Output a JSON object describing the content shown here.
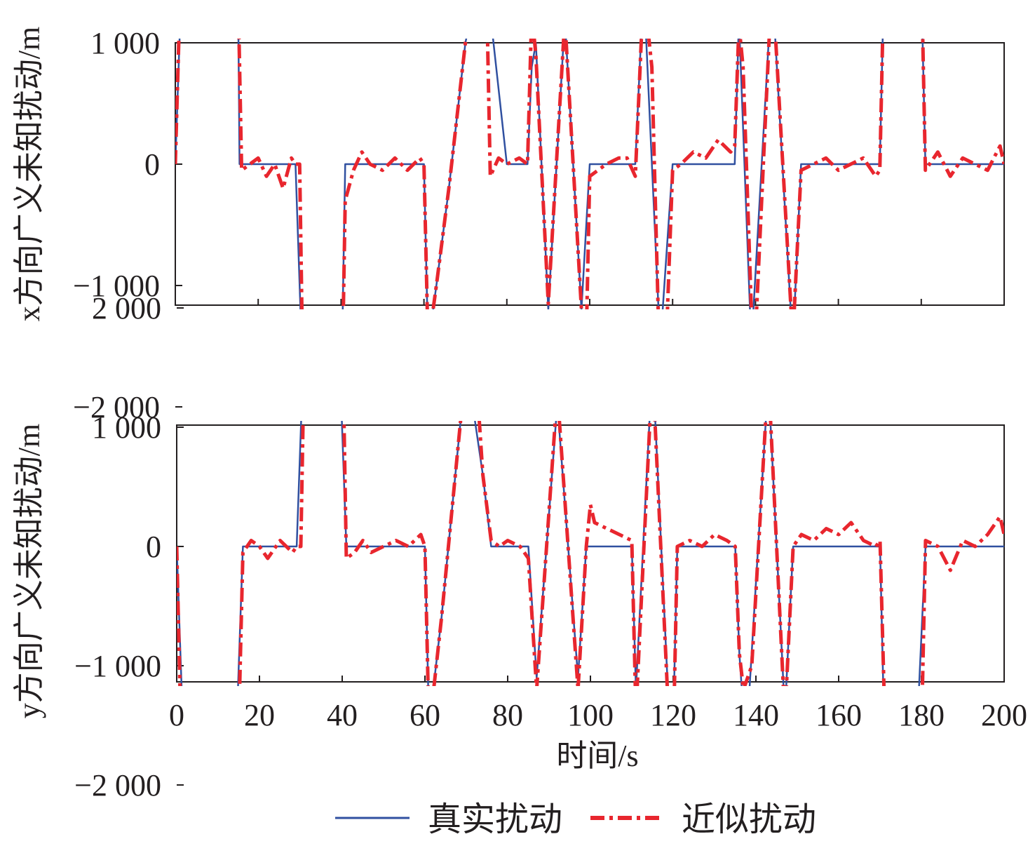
{
  "chart_data": [
    {
      "type": "line",
      "ylabel": "x方向广义未知扰动/m",
      "xlim": [
        0,
        200
      ],
      "ylim": [
        -2300,
        2000
      ],
      "yticks": [
        2000,
        1000,
        0,
        -1000,
        -2000
      ],
      "ytick_labels": [
        "2 000",
        "1 000",
        "0",
        "−1 000",
        "−2 000"
      ],
      "grid": false,
      "series": [
        {
          "name": "真实扰动",
          "color": "#3050a0",
          "style": "solid",
          "x": [
            0,
            2,
            15,
            15.5,
            29,
            31,
            40,
            41,
            60,
            61,
            63,
            66,
            70,
            73,
            75,
            80,
            85,
            86,
            87,
            90,
            94,
            98,
            100,
            104,
            109,
            111,
            113,
            117,
            120,
            123,
            135,
            136,
            139,
            144,
            149,
            151,
            170,
            171,
            180,
            181,
            200
          ],
          "y": [
            0,
            2000,
            2000,
            0,
            0,
            -2000,
            -2000,
            0,
            0,
            -1500,
            -1000,
            -200,
            1000,
            1500,
            1550,
            0,
            0,
            800,
            1000,
            -1200,
            1200,
            -1200,
            0,
            0,
            0,
            0,
            1500,
            -1500,
            0,
            0,
            0,
            1200,
            -1500,
            1500,
            -1500,
            0,
            0,
            1500,
            1500,
            0,
            0
          ]
        },
        {
          "name": "近似扰动",
          "color": "#e8262e",
          "style": "dash-dot",
          "x": [
            0,
            1,
            2,
            4,
            6,
            8,
            10,
            12,
            14,
            15,
            16,
            18,
            20,
            22,
            24,
            26,
            28,
            29,
            30,
            31,
            33,
            35,
            37,
            39,
            40,
            41,
            43,
            45,
            47,
            50,
            53,
            56,
            59,
            60,
            61,
            63,
            66,
            70,
            73,
            74,
            75,
            76,
            78,
            80,
            83,
            85,
            86,
            87,
            90,
            94,
            98,
            99,
            100,
            102,
            104,
            107,
            109,
            111,
            113,
            115,
            117,
            118,
            120,
            122,
            125,
            128,
            131,
            134,
            135,
            136,
            137,
            139,
            140,
            144,
            149,
            151,
            154,
            157,
            160,
            163,
            166,
            169,
            170,
            171,
            173,
            175,
            177,
            179,
            180,
            181,
            184,
            187,
            190,
            193,
            196,
            199,
            200
          ],
          "y": [
            0,
            1200,
            1900,
            1850,
            1800,
            1750,
            1700,
            1650,
            1700,
            1700,
            -50,
            0,
            50,
            -100,
            0,
            -200,
            50,
            0,
            0,
            -2200,
            -2100,
            -2050,
            -2200,
            -2100,
            -2300,
            -300,
            -50,
            100,
            0,
            -50,
            50,
            -50,
            50,
            0,
            -1500,
            -1000,
            -200,
            1000,
            1600,
            1650,
            1600,
            -100,
            50,
            0,
            50,
            0,
            1250,
            900,
            -1150,
            1200,
            -1200,
            -1700,
            -100,
            -50,
            0,
            50,
            50,
            -100,
            1450,
            800,
            -1850,
            -1900,
            -50,
            0,
            100,
            50,
            200,
            100,
            150,
            1150,
            800,
            -1200,
            -1400,
            1550,
            -1450,
            -50,
            0,
            50,
            -50,
            0,
            50,
            -100,
            -50,
            1550,
            1500,
            1550,
            1500,
            1550,
            1650,
            -50,
            100,
            -100,
            50,
            0,
            -50,
            150,
            0
          ]
        }
      ]
    },
    {
      "type": "line",
      "ylabel": "y方向广义未知扰动/m",
      "xlabel": "时间/s",
      "xlim": [
        0,
        200
      ],
      "ylim": [
        -2300,
        2000
      ],
      "xticks": [
        0,
        20,
        40,
        60,
        80,
        100,
        120,
        140,
        160,
        180,
        200
      ],
      "yticks": [
        2000,
        1000,
        0,
        -1000,
        -2000
      ],
      "ytick_labels": [
        "2 000",
        "1 000",
        "0",
        "−1 000",
        "−2 000"
      ],
      "grid": false,
      "series": [
        {
          "name": "真实扰动",
          "color": "#3050a0",
          "style": "solid",
          "x": [
            0,
            2,
            14,
            16,
            29,
            31,
            39,
            41,
            60,
            61,
            64,
            70,
            74,
            76,
            85,
            87,
            92,
            97,
            99,
            110,
            111,
            115,
            119,
            120,
            121,
            135,
            136,
            137,
            138,
            143,
            147,
            149,
            170,
            171,
            179,
            181,
            200
          ],
          "y": [
            0,
            -2000,
            -2000,
            0,
            0,
            1950,
            1950,
            0,
            0,
            -1500,
            -600,
            1550,
            600,
            0,
            0,
            -1100,
            1200,
            -1100,
            0,
            0,
            -1200,
            1550,
            -1400,
            -1500,
            0,
            0,
            -900,
            -1400,
            -1450,
            1400,
            -1400,
            0,
            0,
            -1500,
            -1500,
            0,
            0
          ]
        },
        {
          "name": "近似扰动",
          "color": "#e8262e",
          "style": "dash-dot",
          "x": [
            0,
            1,
            2,
            4,
            6,
            8,
            10,
            12,
            13,
            14,
            15,
            16,
            18,
            20,
            22,
            25,
            28,
            29,
            30,
            31,
            33,
            35,
            37,
            39,
            40,
            41,
            43,
            45,
            47,
            50,
            53,
            56,
            59,
            60,
            61,
            64,
            70,
            72,
            74,
            76,
            78,
            80,
            83,
            85,
            87,
            92,
            97,
            99,
            100,
            101,
            104,
            107,
            110,
            111,
            115,
            119,
            120,
            121,
            124,
            127,
            130,
            133,
            135,
            136,
            137,
            139,
            143,
            147,
            149,
            151,
            154,
            157,
            160,
            163,
            166,
            169,
            170,
            171,
            173,
            175,
            177,
            179,
            180,
            181,
            184,
            187,
            190,
            193,
            196,
            199,
            200
          ],
          "y": [
            0,
            -1500,
            -2200,
            -1900,
            -2250,
            -2200,
            -2300,
            -2200,
            -2250,
            -2100,
            -1500,
            -50,
            50,
            0,
            -100,
            50,
            -50,
            0,
            0,
            1950,
            1900,
            1750,
            2000,
            2050,
            1950,
            -100,
            -50,
            50,
            -50,
            0,
            50,
            0,
            100,
            0,
            -1550,
            -600,
            1550,
            1650,
            600,
            50,
            0,
            50,
            0,
            -100,
            -1200,
            1300,
            -1200,
            0,
            350,
            200,
            150,
            100,
            50,
            -1400,
            1500,
            -1500,
            -1700,
            0,
            50,
            0,
            100,
            50,
            0,
            -900,
            -1200,
            -1000,
            1450,
            -1450,
            0,
            100,
            50,
            150,
            100,
            200,
            50,
            0,
            50,
            -1250,
            -1400,
            -1500,
            -1550,
            -1500,
            -1600,
            50,
            0,
            -200,
            50,
            0,
            100,
            250,
            100
          ]
        }
      ]
    }
  ],
  "legend": [
    {
      "label": "真实扰动",
      "color": "#3050a0",
      "style": "solid"
    },
    {
      "label": "近似扰动",
      "color": "#e8262e",
      "style": "dash-dot"
    }
  ]
}
